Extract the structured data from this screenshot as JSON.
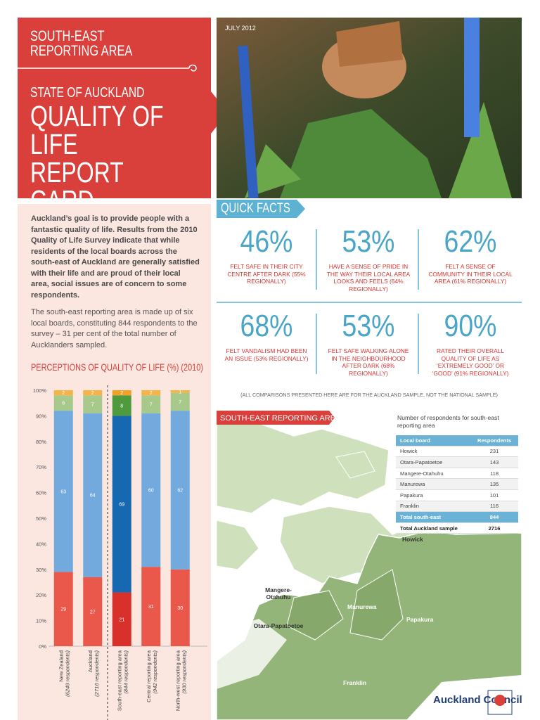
{
  "header": {
    "region": "SOUTH-EAST REPORTING AREA",
    "kicker": "STATE OF AUCKLAND",
    "title": "QUALITY OF LIFE REPORT CARD",
    "date": "JULY 2012"
  },
  "intro": [
    "Auckland’s goal is to provide people with a fantastic quality of life. Results from the 2010 Quality of Life Survey indicate that while residents of the local boards across the south-east of Auckland are generally satisfied with their life and are proud of their local area, social issues are of concern to some respondents.",
    "The south-east reporting area is made up of six local boards, constituting 844 respondents to the survey – 31 per cent of the total number of Aucklanders sampled."
  ],
  "quick_facts": {
    "title": "QUICK FACTS",
    "items": [
      {
        "value": "46%",
        "text": "FELT SAFE IN THEIR CITY CENTRE AFTER DARK (55% REGIONALLY)"
      },
      {
        "value": "53%",
        "text": "HAVE A SENSE OF PRIDE IN THE WAY THEIR LOCAL AREA LOOKS AND FEELS (64% REGIONALLY)"
      },
      {
        "value": "62%",
        "text": "FELT A SENSE OF COMMUNITY IN THEIR LOCAL AREA (61% REGIONALLY)"
      },
      {
        "value": "68%",
        "text": "FELT VANDALISM HAD BEEN AN ISSUE (53% REGIONALLY)"
      },
      {
        "value": "53%",
        "text": "FELT SAFE WALKING ALONE IN THE NEIGHBOURHOOD AFTER DARK (68% REGIONALLY)"
      },
      {
        "value": "90%",
        "text": "RATED THEIR OVERALL QUALITY OF LIFE AS ‘EXTREMELY GOOD’ OR ‘GOOD’ (91% REGIONALLY)"
      }
    ],
    "note": "(ALL COMPARISONS PRESENTED HERE ARE FOR THE AUCKLAND SAMPLE, NOT THE NATIONAL SAMPLE)"
  },
  "chart_data": {
    "type": "stacked_bar",
    "title": "PERCEPTIONS OF QUALITY OF LIFE (%) (2010)",
    "categories": [
      "New Zealand",
      "Auckland",
      "South-east reporting area",
      "Central reporting area",
      "North-west reporting area"
    ],
    "category_notes": [
      "(6249 respondents)",
      "(2716 respondents)",
      "(844 respondents)",
      "(942 respondents)",
      "(930 respondents)"
    ],
    "series": [
      {
        "colors": [
          "#e9584b",
          "#e9584b",
          "#d8302a",
          "#e9584b",
          "#e9584b"
        ],
        "values": [
          29,
          27,
          21,
          31,
          30
        ]
      },
      {
        "colors": [
          "#72aade",
          "#72aade",
          "#1668b1",
          "#72aade",
          "#72aade"
        ],
        "values": [
          63,
          64,
          69,
          60,
          62
        ]
      },
      {
        "colors": [
          "#a8c98c",
          "#a8c98c",
          "#4f9a3d",
          "#a8c98c",
          "#a8c98c"
        ],
        "values": [
          6,
          7,
          8,
          7,
          7
        ]
      },
      {
        "colors": [
          "#f4b448",
          "#f4b448",
          "#f1a225",
          "#f4b448",
          "#f4b448"
        ],
        "values": [
          2,
          2,
          2,
          2,
          1
        ]
      }
    ],
    "ylim": [
      0,
      100
    ],
    "yticks": [
      {
        "value": 0,
        "label": "0%"
      },
      {
        "value": 10,
        "label": "10%"
      },
      {
        "value": 20,
        "label": "20%"
      },
      {
        "value": 30,
        "label": "30%"
      },
      {
        "value": 40,
        "label": "40%"
      },
      {
        "value": 50,
        "label": "50%"
      },
      {
        "value": 60,
        "label": "60%"
      },
      {
        "value": 70,
        "label": "70%"
      },
      {
        "value": 80,
        "label": "80%"
      },
      {
        "value": 90,
        "label": "90%"
      },
      {
        "value": 100,
        "label": "100%"
      }
    ],
    "grid": false
  },
  "map": {
    "title": "SOUTH-EAST REPORTING AREA",
    "labels": [
      "Howick",
      "Mangere-Otahuhu",
      "Otara-Papatoetoe",
      "Manurewa",
      "Papakura",
      "Franklin"
    ]
  },
  "respondents_table": {
    "title": "Number of respondents for south-east reporting area",
    "columns": [
      "Local board",
      "Respondents"
    ],
    "rows": [
      [
        "Howick",
        231
      ],
      [
        "Otara-Papatoetoe",
        143
      ],
      [
        "Mangere-Otahuhu",
        118
      ],
      [
        "Manurewa",
        135
      ],
      [
        "Papakura",
        101
      ],
      [
        "Franklin",
        116
      ],
      [
        "Total south-east",
        844
      ],
      [
        "Total Auckland sample",
        2716
      ]
    ]
  },
  "logo": "Auckland Council"
}
